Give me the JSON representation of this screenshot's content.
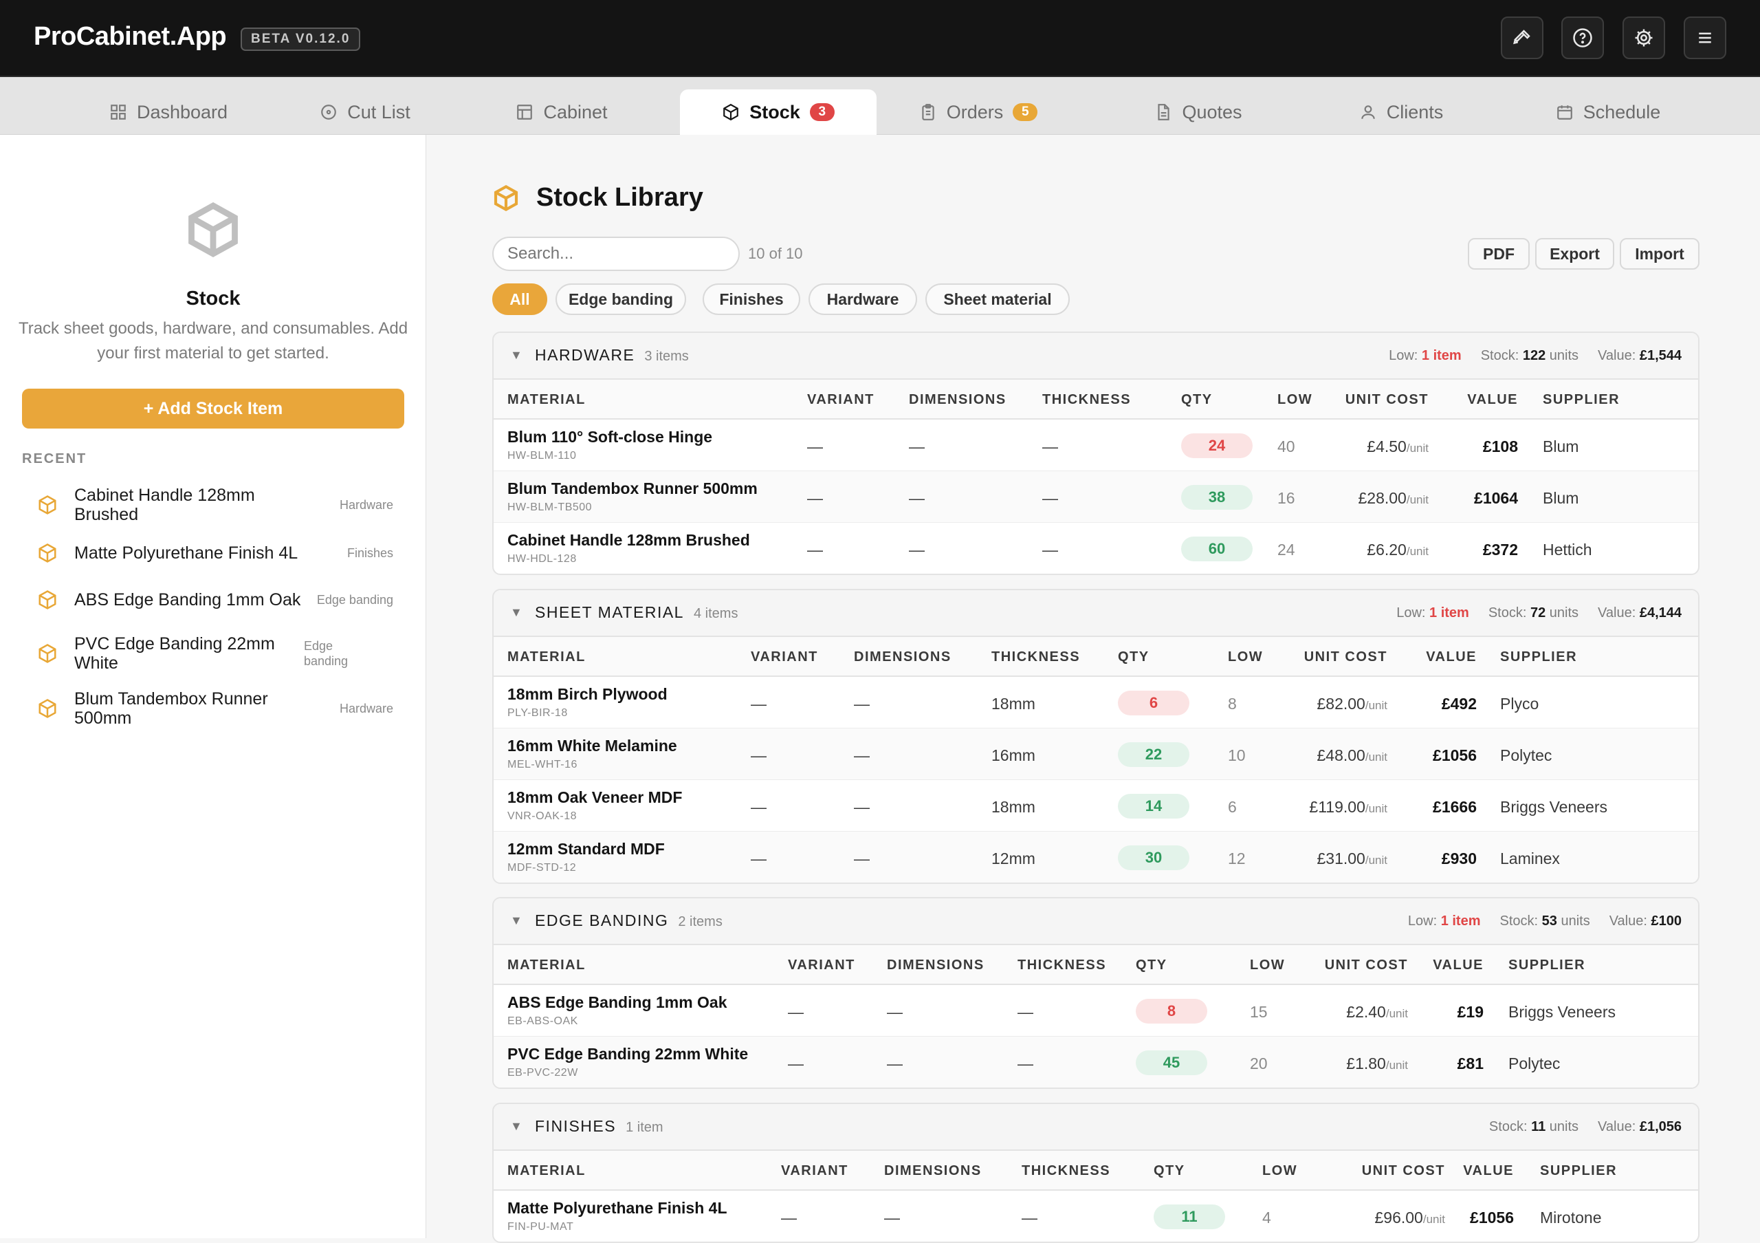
{
  "app": {
    "name": "ProCabinet.App",
    "version": "BETA V0.12.0"
  },
  "topbar_buttons": [
    {
      "icon": "hammer-icon"
    },
    {
      "icon": "help-icon"
    },
    {
      "icon": "gear-icon"
    },
    {
      "icon": "menu-icon"
    }
  ],
  "nav": [
    {
      "label": "Dashboard",
      "icon": "grid-icon",
      "badge": ""
    },
    {
      "label": "Cut List",
      "icon": "saw-icon",
      "badge": ""
    },
    {
      "label": "Cabinet",
      "icon": "cabinet-icon",
      "badge": ""
    },
    {
      "label": "Stock",
      "icon": "box-icon",
      "badge": "3",
      "active": true
    },
    {
      "label": "Orders",
      "icon": "clipboard-icon",
      "badge": "5"
    },
    {
      "label": "Quotes",
      "icon": "document-icon",
      "badge": ""
    },
    {
      "label": "Clients",
      "icon": "user-icon",
      "badge": ""
    },
    {
      "label": "Schedule",
      "icon": "calendar-icon",
      "badge": ""
    }
  ],
  "sidebar": {
    "title": "Stock",
    "description": "Track sheet goods, hardware, and consumables. Add your first material to get started.",
    "add_button": "+ Add Stock Item",
    "recent_label": "RECENT",
    "recent": [
      {
        "name": "Cabinet Handle 128mm Brushed",
        "category": "Hardware"
      },
      {
        "name": "Matte Polyurethane Finish 4L",
        "category": "Finishes"
      },
      {
        "name": "ABS Edge Banding 1mm Oak",
        "category": "Edge banding"
      },
      {
        "name": "PVC Edge Banding 22mm White",
        "category": "Edge banding"
      },
      {
        "name": "Blum Tandembox Runner 500mm",
        "category": "Hardware"
      }
    ]
  },
  "main": {
    "title": "Stock Library",
    "search_placeholder": "Search...",
    "count": "10 of 10",
    "actions": [
      "PDF",
      "Export",
      "Import"
    ],
    "filters": [
      "All",
      "Edge banding",
      "Finishes",
      "Hardware",
      "Sheet material"
    ],
    "active_filter": "All",
    "columns": [
      "MATERIAL",
      "VARIANT",
      "DIMENSIONS",
      "THICKNESS",
      "QTY",
      "LOW",
      "UNIT COST",
      "VALUE",
      "SUPPLIER"
    ],
    "unit_suffix": "/unit",
    "groups": [
      {
        "name": "HARDWARE",
        "count": "3 items",
        "low_label": "Low:",
        "low_value": "1 item",
        "stock_label": "Stock:",
        "stock_value": "122",
        "stock_unit": "units",
        "value_label": "Value:",
        "value": "£1,544",
        "rows": [
          {
            "name": "Blum 110° Soft-close Hinge",
            "sku": "HW-BLM-110",
            "variant": "—",
            "dimensions": "—",
            "thickness": "—",
            "qty": "24",
            "qty_status": "low",
            "low": "40",
            "unit_cost": "£4.50",
            "value": "£108",
            "supplier": "Blum"
          },
          {
            "name": "Blum Tandembox Runner 500mm",
            "sku": "HW-BLM-TB500",
            "variant": "—",
            "dimensions": "—",
            "thickness": "—",
            "qty": "38",
            "qty_status": "ok",
            "low": "16",
            "unit_cost": "£28.00",
            "value": "£1064",
            "supplier": "Blum"
          },
          {
            "name": "Cabinet Handle 128mm Brushed",
            "sku": "HW-HDL-128",
            "variant": "—",
            "dimensions": "—",
            "thickness": "—",
            "qty": "60",
            "qty_status": "ok",
            "low": "24",
            "unit_cost": "£6.20",
            "value": "£372",
            "supplier": "Hettich"
          }
        ]
      },
      {
        "name": "SHEET MATERIAL",
        "count": "4 items",
        "low_label": "Low:",
        "low_value": "1 item",
        "stock_label": "Stock:",
        "stock_value": "72",
        "stock_unit": "units",
        "value_label": "Value:",
        "value": "£4,144",
        "rows": [
          {
            "name": "18mm Birch Plywood",
            "sku": "PLY-BIR-18",
            "variant": "—",
            "dimensions": "—",
            "thickness": "18mm",
            "qty": "6",
            "qty_status": "low",
            "low": "8",
            "unit_cost": "£82.00",
            "value": "£492",
            "supplier": "Plyco"
          },
          {
            "name": "16mm White Melamine",
            "sku": "MEL-WHT-16",
            "variant": "—",
            "dimensions": "—",
            "thickness": "16mm",
            "qty": "22",
            "qty_status": "ok",
            "low": "10",
            "unit_cost": "£48.00",
            "value": "£1056",
            "supplier": "Polytec"
          },
          {
            "name": "18mm Oak Veneer MDF",
            "sku": "VNR-OAK-18",
            "variant": "—",
            "dimensions": "—",
            "thickness": "18mm",
            "qty": "14",
            "qty_status": "ok",
            "low": "6",
            "unit_cost": "£119.00",
            "value": "£1666",
            "supplier": "Briggs Veneers"
          },
          {
            "name": "12mm Standard MDF",
            "sku": "MDF-STD-12",
            "variant": "—",
            "dimensions": "—",
            "thickness": "12mm",
            "qty": "30",
            "qty_status": "ok",
            "low": "12",
            "unit_cost": "£31.00",
            "value": "£930",
            "supplier": "Laminex"
          }
        ]
      },
      {
        "name": "EDGE BANDING",
        "count": "2 items",
        "low_label": "Low:",
        "low_value": "1 item",
        "stock_label": "Stock:",
        "stock_value": "53",
        "stock_unit": "units",
        "value_label": "Value:",
        "value": "£100",
        "rows": [
          {
            "name": "ABS Edge Banding 1mm Oak",
            "sku": "EB-ABS-OAK",
            "variant": "—",
            "dimensions": "—",
            "thickness": "—",
            "qty": "8",
            "qty_status": "low",
            "low": "15",
            "unit_cost": "£2.40",
            "value": "£19",
            "supplier": "Briggs Veneers"
          },
          {
            "name": "PVC Edge Banding 22mm White",
            "sku": "EB-PVC-22W",
            "variant": "—",
            "dimensions": "—",
            "thickness": "—",
            "qty": "45",
            "qty_status": "ok",
            "low": "20",
            "unit_cost": "£1.80",
            "value": "£81",
            "supplier": "Polytec"
          }
        ]
      },
      {
        "name": "FINISHES",
        "count": "1 item",
        "low_label": "",
        "low_value": "",
        "stock_label": "Stock:",
        "stock_value": "11",
        "stock_unit": "units",
        "value_label": "Value:",
        "value": "£1,056",
        "rows": [
          {
            "name": "Matte Polyurethane Finish 4L",
            "sku": "FIN-PU-MAT",
            "variant": "—",
            "dimensions": "—",
            "thickness": "—",
            "qty": "11",
            "qty_status": "ok",
            "low": "4",
            "unit_cost": "£96.00",
            "value": "£1056",
            "supplier": "Mirotone"
          }
        ]
      }
    ]
  },
  "colors": {
    "accent": "#e9a63a",
    "danger": "#e04646",
    "success": "#2e9a5d",
    "topbar": "#141414"
  }
}
